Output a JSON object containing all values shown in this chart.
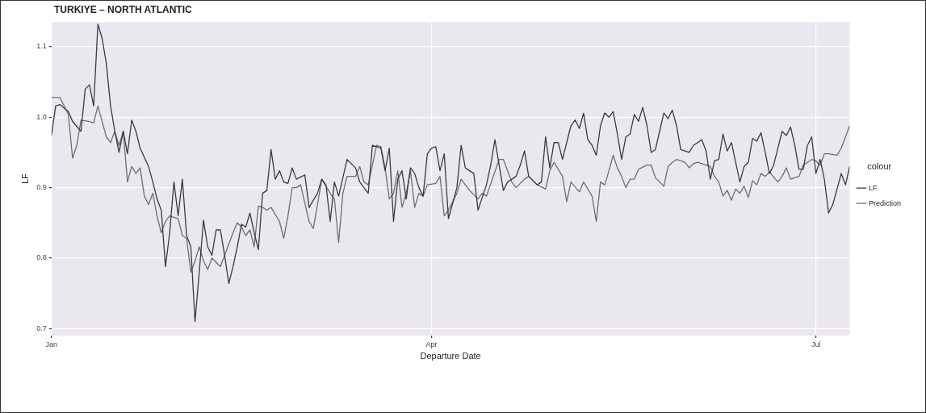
{
  "chart_data": {
    "type": "line",
    "title": "TURKIYE – NORTH ATLANTIC",
    "xlabel": "Departure Date",
    "ylabel": "LF",
    "legend_title": "colour",
    "legend": "right",
    "grid": true,
    "xlim": [
      "--01-01",
      "--07-09"
    ],
    "xticks": [
      {
        "value": "--01-01",
        "label": "Jan"
      },
      {
        "value": "--04-01",
        "label": "Apr"
      },
      {
        "value": "--07-01",
        "label": "Jul"
      }
    ],
    "ylim": [
      0.69,
      1.135
    ],
    "yticks": [
      {
        "value": 0.7,
        "label": "0.7"
      },
      {
        "value": 0.8,
        "label": "0.8"
      },
      {
        "value": 0.9,
        "label": "0.9"
      },
      {
        "value": 1,
        "label": "1.0"
      },
      {
        "value": 1.1,
        "label": "1.1"
      }
    ],
    "series": [
      {
        "name": "LF",
        "color": "#3a3a3a",
        "x": [
          "--01-01",
          "--01-02",
          "--01-03",
          "--01-05",
          "--01-06",
          "--01-08",
          "--01-09",
          "--01-10",
          "--01-11",
          "--01-12",
          "--01-13",
          "--01-14",
          "--01-15",
          "--01-16",
          "--01-17",
          "--01-18",
          "--01-19",
          "--01-20",
          "--01-21",
          "--01-22",
          "--01-24",
          "--01-25",
          "--01-26",
          "--01-27",
          "--01-28",
          "--01-29",
          "--01-30",
          "--01-31",
          "--02-01",
          "--02-02",
          "--02-03",
          "--02-04",
          "--02-05",
          "--02-06",
          "--02-07",
          "--02-08",
          "--02-09",
          "--02-10",
          "--02-11",
          "--02-12",
          "--02-13",
          "--02-14",
          "--02-15",
          "--02-16",
          "--02-17",
          "--02-18",
          "--02-19",
          "--02-20",
          "--02-21",
          "--02-22",
          "--02-23",
          "--02-24",
          "--02-25",
          "--02-26",
          "--02-27",
          "--02-28",
          "--03-02",
          "--03-03",
          "--03-05",
          "--03-06",
          "--03-07",
          "--03-08",
          "--03-09",
          "--03-10",
          "--03-12",
          "--03-14",
          "--03-15",
          "--03-17",
          "--03-18",
          "--03-20",
          "--03-21",
          "--03-22",
          "--03-23",
          "--03-24",
          "--03-25",
          "--03-26",
          "--03-27",
          "--03-28",
          "--03-29",
          "--03-30",
          "--03-31",
          "--04-01",
          "--04-02",
          "--04-03",
          "--04-04",
          "--04-05",
          "--04-07",
          "--04-08",
          "--04-09",
          "--04-11",
          "--04-12",
          "--04-14",
          "--04-15",
          "--04-16",
          "--04-17",
          "--04-18",
          "--04-19",
          "--04-21",
          "--04-22",
          "--04-23",
          "--04-24",
          "--04-26",
          "--04-27",
          "--04-28",
          "--04-29",
          "--04-30",
          "--05-01",
          "--05-02",
          "--05-04",
          "--05-05",
          "--05-06",
          "--05-07",
          "--05-08",
          "--05-09",
          "--05-10",
          "--05-11",
          "--05-12",
          "--05-13",
          "--05-14",
          "--05-15",
          "--05-16",
          "--05-17",
          "--05-18",
          "--05-19",
          "--05-20",
          "--05-21",
          "--05-22",
          "--05-23",
          "--05-24",
          "--05-25",
          "--05-26",
          "--05-27",
          "--05-28",
          "--05-29",
          "--05-30",
          "--06-01",
          "--06-02",
          "--06-03",
          "--06-04",
          "--06-05",
          "--06-06",
          "--06-07",
          "--06-08",
          "--06-09",
          "--06-10",
          "--06-11",
          "--06-12",
          "--06-13",
          "--06-14",
          "--06-15",
          "--06-16",
          "--06-17",
          "--06-18",
          "--06-19",
          "--06-20",
          "--06-21",
          "--06-22",
          "--06-23",
          "--06-24",
          "--06-25",
          "--06-26",
          "--06-27",
          "--06-28",
          "--06-29",
          "--06-30",
          "--07-01",
          "--07-02",
          "--07-03",
          "--07-04",
          "--07-05",
          "--07-07",
          "--07-08",
          "--07-09"
        ],
        "values": [
          0.974,
          1.016,
          1.018,
          1.008,
          0.994,
          0.98,
          1.04,
          1.046,
          1.016,
          1.132,
          1.112,
          1.076,
          1.016,
          0.98,
          0.95,
          0.98,
          0.948,
          0.996,
          0.98,
          0.956,
          0.93,
          0.908,
          0.884,
          0.868,
          0.788,
          0.836,
          0.908,
          0.86,
          0.912,
          0.832,
          0.816,
          0.71,
          0.78,
          0.854,
          0.816,
          0.804,
          0.84,
          0.84,
          0.804,
          0.764,
          0.788,
          0.816,
          0.848,
          0.844,
          0.864,
          0.836,
          0.812,
          0.892,
          0.896,
          0.954,
          0.912,
          0.924,
          0.908,
          0.906,
          0.928,
          0.912,
          0.918,
          0.872,
          0.892,
          0.912,
          0.904,
          0.852,
          0.908,
          0.888,
          0.94,
          0.928,
          0.908,
          0.892,
          0.96,
          0.956,
          0.924,
          0.956,
          0.852,
          0.912,
          0.924,
          0.884,
          0.928,
          0.92,
          0.9,
          0.888,
          0.948,
          0.956,
          0.958,
          0.924,
          0.948,
          0.856,
          0.9,
          0.96,
          0.928,
          0.92,
          0.868,
          0.904,
          0.932,
          0.968,
          0.932,
          0.896,
          0.908,
          0.916,
          0.932,
          0.952,
          0.916,
          0.904,
          0.908,
          0.972,
          0.928,
          0.964,
          0.964,
          0.94,
          0.988,
          0.996,
          0.984,
          1.006,
          0.968,
          0.96,
          0.946,
          0.988,
          1.006,
          1.0,
          1.008,
          0.976,
          0.94,
          0.972,
          0.976,
          1.004,
          0.994,
          1.014,
          0.988,
          0.95,
          0.954,
          0.98,
          1.006,
          0.998,
          1.01,
          0.988,
          0.954,
          0.95,
          0.96,
          0.964,
          0.968,
          0.952,
          0.912,
          0.938,
          0.94,
          0.976,
          0.952,
          0.964,
          0.936,
          0.908,
          0.93,
          0.936,
          0.97,
          0.966,
          0.978,
          0.95,
          0.92,
          0.932,
          0.956,
          0.98,
          0.974,
          0.986,
          0.96,
          0.926,
          0.926,
          0.96,
          0.972,
          0.92,
          0.94,
          0.912,
          0.864,
          0.876,
          0.92,
          0.904,
          0.93
        ]
      },
      {
        "name": "Prediction",
        "color": "#6e6e6e",
        "x": [
          "--01-01",
          "--01-03",
          "--01-04",
          "--01-05",
          "--01-06",
          "--01-07",
          "--01-08",
          "--01-10",
          "--01-11",
          "--01-12",
          "--01-14",
          "--01-15",
          "--01-16",
          "--01-17",
          "--01-18",
          "--01-19",
          "--01-20",
          "--01-21",
          "--01-22",
          "--01-23",
          "--01-24",
          "--01-25",
          "--01-26",
          "--01-27",
          "--01-28",
          "--01-29",
          "--01-31",
          "--02-01",
          "--02-02",
          "--02-03",
          "--02-04",
          "--02-05",
          "--02-06",
          "--02-07",
          "--02-08",
          "--02-10",
          "--02-11",
          "--02-12",
          "--02-13",
          "--02-14",
          "--02-15",
          "--02-16",
          "--02-17",
          "--02-18",
          "--02-19",
          "--02-20",
          "--02-21",
          "--02-22",
          "--02-24",
          "--02-25",
          "--02-26",
          "--02-27",
          "--02-28",
          "--03-01",
          "--03-03",
          "--03-04",
          "--03-05",
          "--03-06",
          "--03-08",
          "--03-09",
          "--03-10",
          "--03-11",
          "--03-12",
          "--03-14",
          "--03-15",
          "--03-16",
          "--03-17",
          "--03-19",
          "--03-20",
          "--03-21",
          "--03-22",
          "--03-23",
          "--03-24",
          "--03-25",
          "--03-26",
          "--03-27",
          "--03-28",
          "--03-29",
          "--03-30",
          "--03-31",
          "--04-02",
          "--04-03",
          "--04-04",
          "--04-05",
          "--04-07",
          "--04-08",
          "--04-10",
          "--04-12",
          "--04-13",
          "--04-14",
          "--04-17",
          "--04-18",
          "--04-20",
          "--04-21",
          "--04-23",
          "--04-24",
          "--04-26",
          "--04-28",
          "--04-29",
          "--04-30",
          "--05-02",
          "--05-03",
          "--05-04",
          "--05-06",
          "--05-07",
          "--05-09",
          "--05-10",
          "--05-11",
          "--05-12",
          "--05-13",
          "--05-14",
          "--05-15",
          "--05-16",
          "--05-17",
          "--05-18",
          "--05-19",
          "--05-20",
          "--05-22",
          "--05-23",
          "--05-24",
          "--05-26",
          "--05-27",
          "--05-28",
          "--05-29",
          "--05-31",
          "--06-01",
          "--06-02",
          "--06-03",
          "--06-05",
          "--06-06",
          "--06-07",
          "--06-08",
          "--06-09",
          "--06-10",
          "--06-11",
          "--06-12",
          "--06-13",
          "--06-14",
          "--06-15",
          "--06-16",
          "--06-17",
          "--06-18",
          "--06-19",
          "--06-20",
          "--06-22",
          "--06-23",
          "--06-24",
          "--06-25",
          "--06-27",
          "--06-28",
          "--06-30",
          "--07-01",
          "--07-02",
          "--07-03",
          "--07-04",
          "--07-06",
          "--07-07",
          "--07-08",
          "--07-09"
        ],
        "values": [
          1.028,
          1.028,
          1.016,
          1.004,
          0.942,
          0.96,
          0.996,
          0.994,
          0.992,
          1.016,
          0.972,
          0.964,
          0.98,
          0.96,
          0.98,
          0.908,
          0.93,
          0.92,
          0.928,
          0.888,
          0.876,
          0.892,
          0.86,
          0.836,
          0.852,
          0.86,
          0.856,
          0.832,
          0.828,
          0.78,
          0.796,
          0.816,
          0.796,
          0.784,
          0.8,
          0.788,
          0.804,
          0.82,
          0.836,
          0.85,
          0.844,
          0.832,
          0.84,
          0.816,
          0.874,
          0.872,
          0.868,
          0.872,
          0.852,
          0.828,
          0.86,
          0.9,
          0.9,
          0.904,
          0.852,
          0.842,
          0.876,
          0.912,
          0.892,
          0.884,
          0.822,
          0.892,
          0.916,
          0.916,
          0.93,
          0.908,
          0.904,
          0.96,
          0.958,
          0.928,
          0.884,
          0.892,
          0.924,
          0.872,
          0.892,
          0.924,
          0.872,
          0.892,
          0.888,
          0.904,
          0.906,
          0.916,
          0.86,
          0.868,
          0.892,
          0.912,
          0.896,
          0.884,
          0.892,
          0.888,
          0.94,
          0.94,
          0.908,
          0.9,
          0.912,
          0.916,
          0.904,
          0.898,
          0.924,
          0.936,
          0.916,
          0.88,
          0.908,
          0.894,
          0.908,
          0.888,
          0.852,
          0.908,
          0.904,
          0.924,
          0.946,
          0.928,
          0.916,
          0.9,
          0.912,
          0.912,
          0.926,
          0.932,
          0.932,
          0.914,
          0.902,
          0.93,
          0.936,
          0.94,
          0.936,
          0.928,
          0.934,
          0.936,
          0.932,
          0.93,
          0.916,
          0.908,
          0.888,
          0.896,
          0.882,
          0.898,
          0.892,
          0.902,
          0.886,
          0.91,
          0.904,
          0.92,
          0.916,
          0.922,
          0.908,
          0.916,
          0.928,
          0.912,
          0.916,
          0.932,
          0.94,
          0.938,
          0.932,
          0.948,
          0.948,
          0.946,
          0.956,
          0.972,
          0.988
        ]
      }
    ]
  }
}
